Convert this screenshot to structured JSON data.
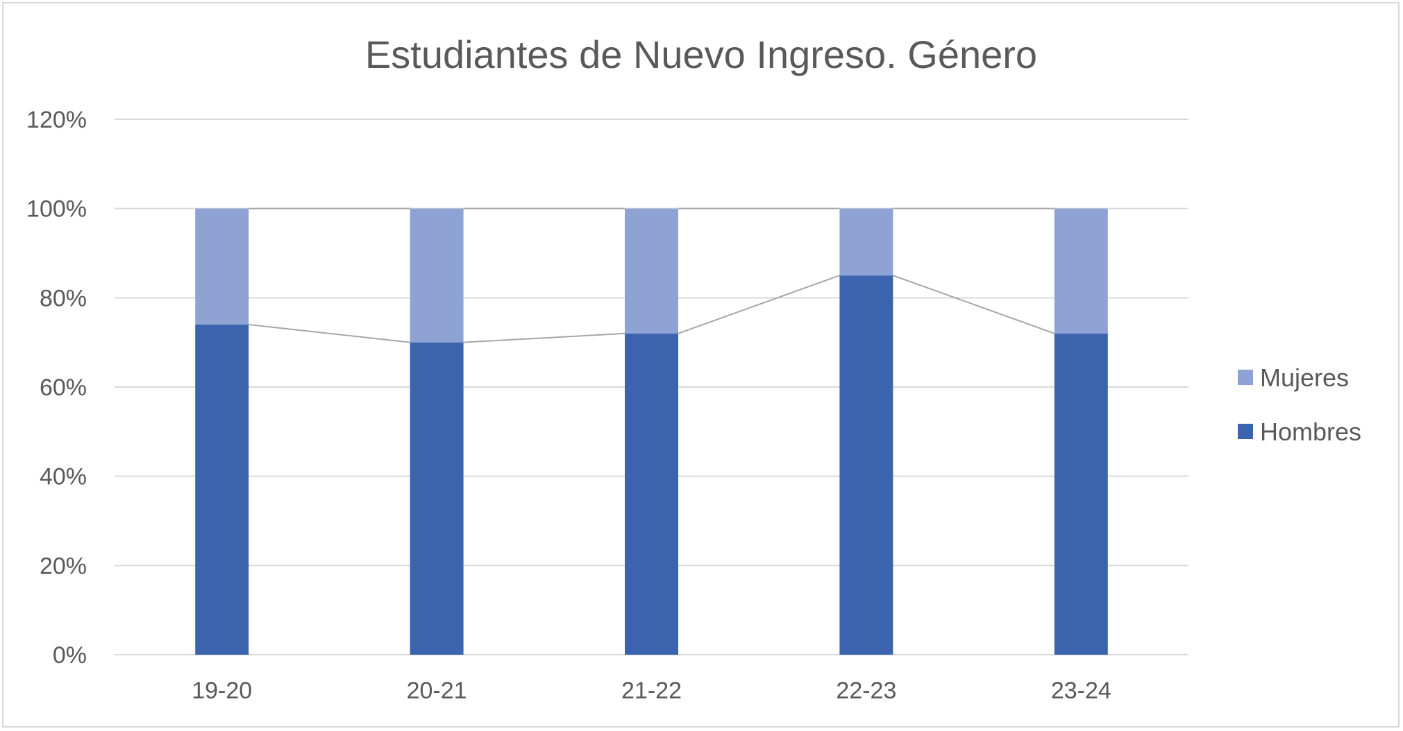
{
  "chart_data": {
    "type": "bar",
    "stacked": true,
    "title": "Estudiantes de Nuevo Ingreso. Género",
    "xlabel": "",
    "ylabel": "",
    "categories": [
      "19-20",
      "20-21",
      "21-22",
      "22-23",
      "23-24"
    ],
    "series": [
      {
        "name": "Hombres",
        "values": [
          74,
          70,
          72,
          85,
          72
        ],
        "color": "#3c64ae"
      },
      {
        "name": "Mujeres",
        "values": [
          26,
          30,
          28,
          15,
          28
        ],
        "color": "#8ea3d3"
      }
    ],
    "series_lines": true,
    "ylim": [
      0,
      120
    ],
    "yticks": [
      0,
      20,
      40,
      60,
      80,
      100,
      120
    ],
    "ytick_labels": [
      "0%",
      "20%",
      "40%",
      "60%",
      "80%",
      "100%",
      "120%"
    ],
    "grid": true,
    "legend": {
      "position": "right",
      "entries": [
        "Mujeres",
        "Hombres"
      ]
    }
  }
}
